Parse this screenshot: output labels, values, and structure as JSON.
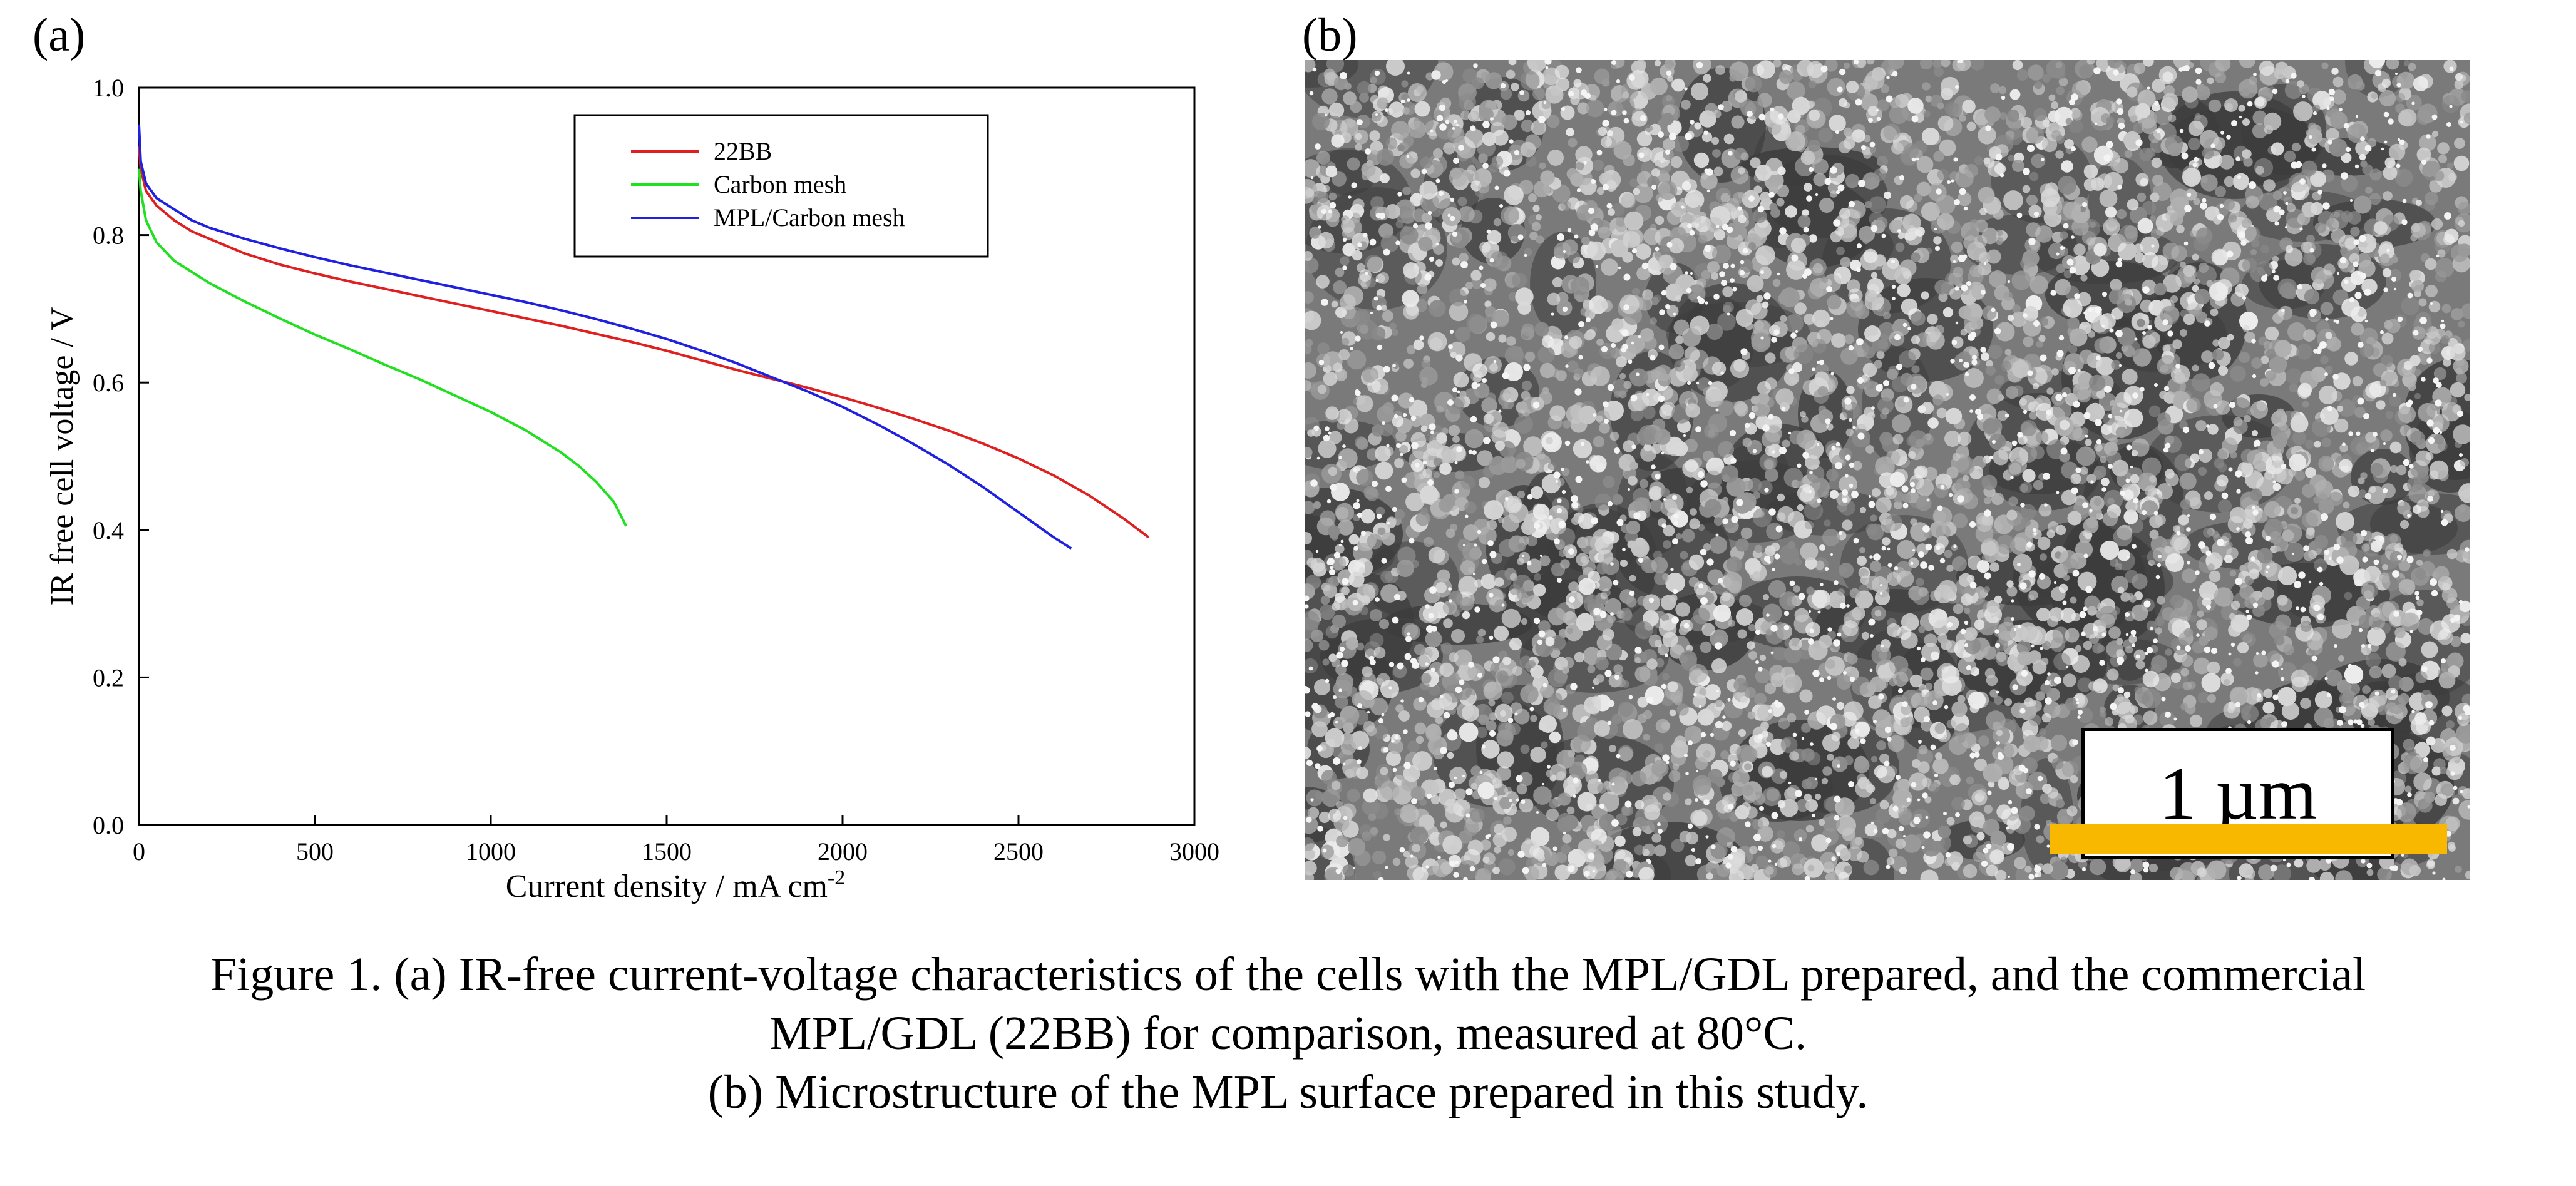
{
  "panel_labels": {
    "a": "(a)",
    "b": "(b)"
  },
  "chart_data": {
    "type": "line",
    "title": "",
    "xlabel": "Current density / mA cm",
    "xlabel_superscript": "-2",
    "ylabel": "IR free cell voltage / V",
    "xlim": [
      0,
      3000
    ],
    "ylim": [
      0.0,
      1.0
    ],
    "xticks": [
      "0",
      "500",
      "1000",
      "1500",
      "2000",
      "2500",
      "3000"
    ],
    "yticks": [
      "0.0",
      "0.2",
      "0.4",
      "0.6",
      "0.8",
      "1.0"
    ],
    "legend_position": "top-right",
    "series": [
      {
        "name": "22BB",
        "color": "#e02020",
        "x": [
          0,
          5,
          20,
          50,
          100,
          150,
          200,
          300,
          400,
          500,
          600,
          700,
          800,
          900,
          1000,
          1100,
          1200,
          1300,
          1400,
          1500,
          1600,
          1700,
          1800,
          1900,
          2000,
          2100,
          2200,
          2300,
          2400,
          2500,
          2600,
          2700,
          2800,
          2870
        ],
        "y": [
          0.92,
          0.89,
          0.86,
          0.84,
          0.82,
          0.805,
          0.795,
          0.775,
          0.76,
          0.748,
          0.737,
          0.727,
          0.717,
          0.707,
          0.697,
          0.687,
          0.677,
          0.666,
          0.655,
          0.643,
          0.63,
          0.617,
          0.605,
          0.593,
          0.58,
          0.566,
          0.551,
          0.535,
          0.517,
          0.497,
          0.474,
          0.447,
          0.415,
          0.39
        ]
      },
      {
        "name": "Carbon mesh",
        "color": "#20e020",
        "x": [
          0,
          5,
          20,
          50,
          100,
          150,
          200,
          300,
          400,
          500,
          600,
          700,
          800,
          900,
          1000,
          1100,
          1200,
          1250,
          1300,
          1350,
          1385
        ],
        "y": [
          0.89,
          0.86,
          0.82,
          0.79,
          0.765,
          0.75,
          0.735,
          0.71,
          0.687,
          0.665,
          0.645,
          0.624,
          0.604,
          0.582,
          0.56,
          0.535,
          0.505,
          0.487,
          0.465,
          0.438,
          0.405
        ]
      },
      {
        "name": "MPL/Carbon mesh",
        "color": "#2020e0",
        "x": [
          0,
          5,
          20,
          50,
          100,
          150,
          200,
          300,
          400,
          500,
          600,
          700,
          800,
          900,
          1000,
          1100,
          1200,
          1300,
          1400,
          1500,
          1600,
          1700,
          1800,
          1900,
          2000,
          2100,
          2200,
          2300,
          2400,
          2500,
          2600,
          2650
        ],
        "y": [
          0.95,
          0.9,
          0.87,
          0.85,
          0.835,
          0.82,
          0.81,
          0.795,
          0.782,
          0.77,
          0.759,
          0.749,
          0.739,
          0.729,
          0.719,
          0.709,
          0.698,
          0.686,
          0.673,
          0.659,
          0.643,
          0.626,
          0.607,
          0.588,
          0.567,
          0.543,
          0.517,
          0.489,
          0.458,
          0.424,
          0.39,
          0.375
        ]
      }
    ]
  },
  "micrograph": {
    "scale_label": "1 µm",
    "scale_bar_color": "#f8b800"
  },
  "caption": {
    "line1": "Figure 1.   (a) IR-free current-voltage characteristics of the cells with the MPL/GDL prepared, and the commercial",
    "line2": "MPL/GDL (22BB) for comparison, measured at 80°C.",
    "line3": "(b) Microstructure of the MPL surface prepared in this study."
  }
}
